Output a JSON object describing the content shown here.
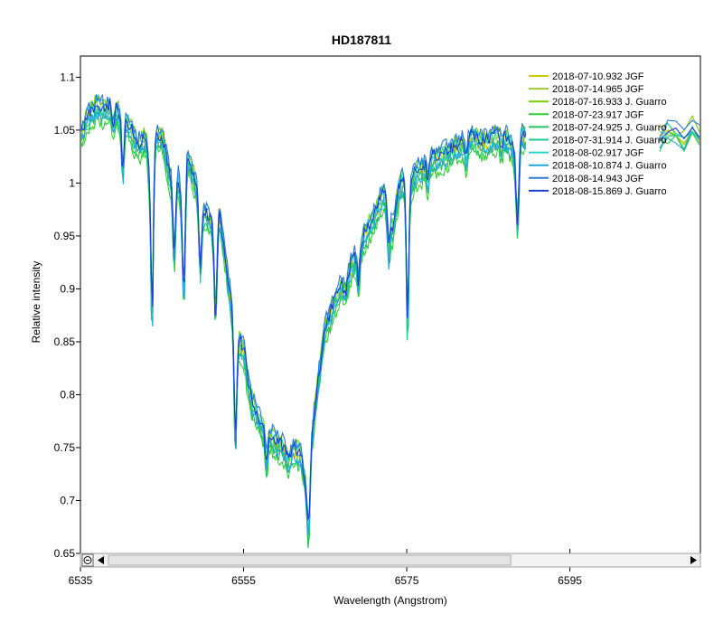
{
  "chart_data": {
    "type": "line",
    "title": "HD187811",
    "xlabel": "Wavelength (Angstrom)",
    "ylabel": "Relative intensity",
    "xlim": [
      6535,
      6611
    ],
    "ylim": [
      0.65,
      1.12
    ],
    "xticks": [
      6535,
      6555,
      6575,
      6595
    ],
    "yticks": [
      0.65,
      0.7,
      0.75,
      0.8,
      0.85,
      0.9,
      0.95,
      1,
      1.05,
      1.1
    ],
    "grid": false,
    "legend_position": "top-right",
    "base_profile": {
      "x": [
        6535,
        6536,
        6537,
        6538,
        6539,
        6540,
        6541,
        6542,
        6543,
        6543.5,
        6544,
        6545,
        6546,
        6547,
        6547.5,
        6548,
        6549,
        6549.5,
        6550,
        6551,
        6551.5,
        6552,
        6553,
        6554,
        6555,
        6555.5,
        6556,
        6557,
        6558,
        6559,
        6560,
        6560.5,
        6561,
        6562,
        6562.8,
        6563.3,
        6564,
        6565,
        6566,
        6567,
        6567.5,
        6568,
        6569,
        6570,
        6571,
        6572,
        6572.8,
        6573.3,
        6574,
        6575,
        6575.5,
        6576,
        6577,
        6578,
        6579,
        6580,
        6581,
        6582,
        6583,
        6584,
        6585,
        6586,
        6587,
        6588,
        6588.5,
        6589,
        6590
      ],
      "y": [
        1.04,
        1.06,
        1.07,
        1.065,
        1.07,
        1.06,
        1.05,
        1.03,
        1.04,
        1.0,
        1.04,
        1.04,
        1.0,
        1.0,
        0.97,
        1.02,
        1.0,
        0.98,
        0.97,
        0.96,
        0.93,
        0.97,
        0.91,
        0.85,
        0.84,
        0.81,
        0.79,
        0.77,
        0.76,
        0.75,
        0.745,
        0.73,
        0.745,
        0.74,
        0.7,
        0.75,
        0.8,
        0.86,
        0.88,
        0.9,
        0.89,
        0.915,
        0.93,
        0.95,
        0.965,
        0.985,
        0.98,
        0.95,
        0.99,
        1.005,
        0.995,
        1.005,
        1.01,
        1.02,
        1.02,
        1.025,
        1.03,
        1.035,
        1.04,
        1.035,
        1.035,
        1.04,
        1.04,
        1.03,
        1.0,
        1.04,
        1.04
      ]
    },
    "absorption_lines": [
      {
        "x": 6539.0,
        "depth": 0.02
      },
      {
        "x": 6540.2,
        "depth": 0.05
      },
      {
        "x": 6543.8,
        "depth": 0.15
      },
      {
        "x": 6546.5,
        "depth": 0.08
      },
      {
        "x": 6547.7,
        "depth": 0.1
      },
      {
        "x": 6549.7,
        "depth": 0.06
      },
      {
        "x": 6551.6,
        "depth": 0.06
      },
      {
        "x": 6554.0,
        "depth": 0.1
      },
      {
        "x": 6557.8,
        "depth": 0.03
      },
      {
        "x": 6563.0,
        "depth": 0.05
      },
      {
        "x": 6569.1,
        "depth": 0.03
      },
      {
        "x": 6572.8,
        "depth": 0.05
      },
      {
        "x": 6575.1,
        "depth": 0.14
      },
      {
        "x": 6577.6,
        "depth": 0.02
      },
      {
        "x": 6582.3,
        "depth": 0.02
      },
      {
        "x": 6586.6,
        "depth": 0.01
      },
      {
        "x": 6588.6,
        "depth": 0.05
      }
    ],
    "series": [
      {
        "name": "2018-07-10.932  JGF",
        "color": "#c8c800",
        "x_end": 6589.6,
        "offset": 0.0
      },
      {
        "name": "2018-07-14.965  JGF",
        "color": "#9acd32",
        "x_end": 6589.6,
        "offset": 0.005
      },
      {
        "name": "2018-07-16.933  J. Guarro",
        "color": "#7cd000",
        "x_end": 6589.6,
        "offset": 0.01
      },
      {
        "name": "2018-07-23.917  JGF",
        "color": "#33cc33",
        "x_end": 6589.6,
        "offset": -0.01
      },
      {
        "name": "2018-07-24.925  J. Guarro",
        "color": "#22c55e",
        "x_end": 6589.6,
        "offset": -0.005
      },
      {
        "name": "2018-07-31.914  J. Guarro",
        "color": "#20c997",
        "x_end": 6589.6,
        "offset": 0.0
      },
      {
        "name": "2018-08-02.917  JGF",
        "color": "#28d8c8",
        "x_end": 6589.6,
        "offset": 0.008
      },
      {
        "name": "2018-08-10.874  J. Guarro",
        "color": "#20a8d8",
        "x_end": 6589.6,
        "offset": -0.003
      },
      {
        "name": "2018-08-14.943  JGF",
        "color": "#2b7bd6",
        "x_end": 6589.6,
        "offset": 0.012
      },
      {
        "name": "2018-08-15.869  J. Guarro",
        "color": "#1a3fcf",
        "x_end": 6589.6,
        "offset": 0.006
      }
    ],
    "right_fragment": {
      "x": [
        6606.0,
        6607,
        6608,
        6609,
        6610,
        6611
      ],
      "y": [
        1.04,
        1.05,
        1.045,
        1.04,
        1.05,
        1.04
      ]
    }
  }
}
